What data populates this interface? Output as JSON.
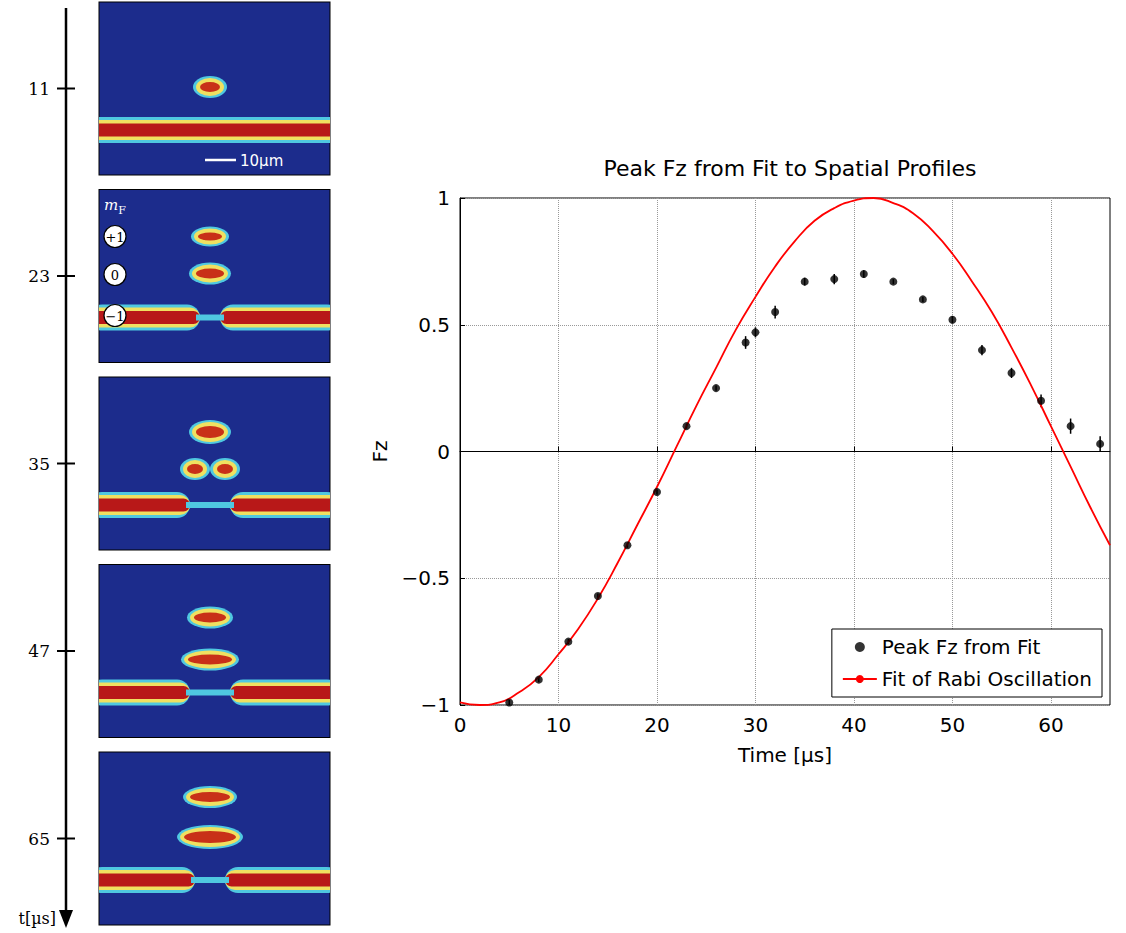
{
  "chart_data": {
    "type": "scatter",
    "title": "Peak Fz from Fit to Spatial Profiles",
    "x_label": "Time [µs]",
    "y_label": "Fz",
    "xlim": [
      0,
      66
    ],
    "xticks": [
      0,
      10,
      20,
      30,
      40,
      50,
      60
    ],
    "ylim": [
      -1,
      1
    ],
    "yticks": [
      {
        "value": -1,
        "label": "−1"
      },
      {
        "value": -0.5,
        "label": "−0.5"
      },
      0,
      0.5,
      1
    ],
    "grid": true,
    "legend": "lower right",
    "series": [
      {
        "name": "Peak Fz from Fit",
        "type": "scatter",
        "color": "#000000",
        "marker": "circle",
        "x": [
          5,
          8,
          11,
          14,
          17,
          20,
          23,
          26,
          29,
          30,
          32,
          35,
          38,
          41,
          44,
          47,
          50,
          53,
          56,
          59,
          62,
          65
        ],
        "values": [
          -0.99,
          -0.9,
          -0.75,
          -0.57,
          -0.37,
          -0.16,
          0.1,
          0.25,
          0.43,
          0.47,
          0.55,
          0.67,
          0.68,
          0.7,
          0.67,
          0.6,
          0.52,
          0.4,
          0.31,
          0.2,
          0.1,
          0.03
        ],
        "errors": [
          0.01,
          0.01,
          0.01,
          0.01,
          0.01,
          0.01,
          0.01,
          0.01,
          0.025,
          0.02,
          0.025,
          0.015,
          0.02,
          0.015,
          0.01,
          0.01,
          0.015,
          0.02,
          0.02,
          0.025,
          0.03,
          0.03
        ]
      },
      {
        "name": "Fit of Rabi Oscillation",
        "type": "line",
        "color": "#ff0000",
        "line_style": "solid",
        "x": [
          0,
          2,
          4,
          6,
          8,
          10,
          12,
          14,
          16,
          18,
          20,
          22,
          24,
          26,
          28,
          30,
          32,
          34,
          36,
          38,
          40,
          42,
          44,
          46,
          48,
          50,
          52,
          54,
          56,
          58,
          60,
          62,
          64,
          66
        ],
        "values": [
          -0.99,
          -1,
          -0.99,
          -0.95,
          -0.89,
          -0.8,
          -0.7,
          -0.58,
          -0.44,
          -0.29,
          -0.14,
          0.02,
          0.18,
          0.33,
          0.48,
          0.61,
          0.73,
          0.83,
          0.91,
          0.96,
          0.99,
          1,
          0.98,
          0.94,
          0.87,
          0.78,
          0.67,
          0.55,
          0.41,
          0.26,
          0.1,
          -0.06,
          -0.22,
          -0.37
        ]
      }
    ]
  },
  "image_panels": {
    "time_axis_label": "t[µs]",
    "times": [
      11,
      23,
      35,
      47,
      65
    ],
    "scale_bar": "10µm",
    "state_label": "mF",
    "states": [
      "+1",
      "0",
      "−1"
    ]
  }
}
